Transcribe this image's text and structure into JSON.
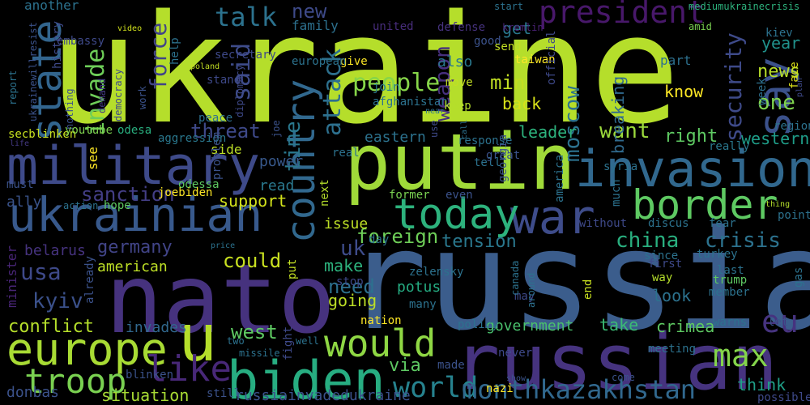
{
  "title": "",
  "words": [
    {
      "text": "ukraine",
      "color": "#b5de2b"
    },
    {
      "text": "russia",
      "color": "#3b5d8c"
    },
    {
      "text": "putin",
      "color": "#a0da39"
    },
    {
      "text": "nato",
      "color": "#46327e"
    },
    {
      "text": "russian",
      "color": "#46337f"
    },
    {
      "text": "military",
      "color": "#3e4a89"
    },
    {
      "text": "invasion",
      "color": "#31688e"
    },
    {
      "text": "ukrainian",
      "color": "#38598c"
    },
    {
      "text": "war",
      "color": "#3e4c8a"
    },
    {
      "text": "biden",
      "color": "#27ad81"
    },
    {
      "text": "border",
      "color": "#5ec962"
    },
    {
      "text": "europe",
      "color": "#a8db34"
    },
    {
      "text": "u",
      "color": "#b5de2b"
    },
    {
      "text": "today",
      "color": "#2db27d"
    },
    {
      "text": "would",
      "color": "#8fd744"
    },
    {
      "text": "country",
      "color": "#31688e"
    },
    {
      "text": "state",
      "color": "#32658e"
    },
    {
      "text": "say",
      "color": "#3b518b"
    },
    {
      "text": "troop",
      "color": "#7ad151"
    },
    {
      "text": "like",
      "color": "#482878"
    },
    {
      "text": "world",
      "color": "#26828e"
    },
    {
      "text": "monthkazakhstan",
      "color": "#31688e"
    },
    {
      "text": "max",
      "color": "#84d44b"
    },
    {
      "text": "eu",
      "color": "#46337f"
    },
    {
      "text": "president",
      "color": "#48186a"
    },
    {
      "text": "people",
      "color": "#86d549"
    },
    {
      "text": "talk",
      "color": "#2c728e"
    },
    {
      "text": "invade",
      "color": "#6ece58"
    },
    {
      "text": "said",
      "color": "#3e4c8a"
    },
    {
      "text": "force",
      "color": "#414487"
    },
    {
      "text": "time",
      "color": "#2a788e"
    },
    {
      "text": "attack",
      "color": "#2d708e"
    },
    {
      "text": "weapon",
      "color": "#472f7d"
    },
    {
      "text": "security",
      "color": "#3e4a89"
    },
    {
      "text": "threat",
      "color": "#3e4989"
    },
    {
      "text": "want",
      "color": "#9bd93c"
    },
    {
      "text": "sanction",
      "color": "#433e85"
    },
    {
      "text": "usa",
      "color": "#3e4989"
    },
    {
      "text": "germany",
      "color": "#414487"
    },
    {
      "text": "uk",
      "color": "#3e4c8a"
    },
    {
      "text": "foreign",
      "color": "#6ece58"
    },
    {
      "text": "tension",
      "color": "#2a788e"
    },
    {
      "text": "china",
      "color": "#29af7f"
    },
    {
      "text": "crisis",
      "color": "#2c728e"
    },
    {
      "text": "could",
      "color": "#c8e020"
    },
    {
      "text": "west",
      "color": "#5ec962"
    },
    {
      "text": "need",
      "color": "#2d708e"
    },
    {
      "text": "kyiv",
      "color": "#3b518b"
    },
    {
      "text": "conflict",
      "color": "#b5de2b"
    },
    {
      "text": "moscow",
      "color": "#2c718e"
    },
    {
      "text": "min",
      "color": "#c2df23"
    },
    {
      "text": "one",
      "color": "#7fd34e"
    },
    {
      "text": "new",
      "color": "#3e4a89"
    },
    {
      "text": "get",
      "color": "#2a788e"
    },
    {
      "text": "know",
      "color": "#fde725"
    },
    {
      "text": "right",
      "color": "#5ec962"
    },
    {
      "text": "support",
      "color": "#d2e21b"
    },
    {
      "text": "breaking",
      "color": "#306a8e"
    },
    {
      "text": "news",
      "color": "#b8de29"
    },
    {
      "text": "year",
      "color": "#20928c"
    },
    {
      "text": "also",
      "color": "#2a788e"
    },
    {
      "text": "back",
      "color": "#d8e219"
    },
    {
      "text": "leader",
      "color": "#2db27d"
    },
    {
      "text": "western",
      "color": "#1f9e89"
    },
    {
      "text": "eastern",
      "color": "#2c728e"
    },
    {
      "text": "american",
      "color": "#bddf26"
    },
    {
      "text": "via",
      "color": "#5ec962"
    },
    {
      "text": "make",
      "color": "#2db27d"
    },
    {
      "text": "going",
      "color": "#bddf26"
    },
    {
      "text": "potus",
      "color": "#25ac82"
    },
    {
      "text": "government",
      "color": "#4ac16d"
    },
    {
      "text": "take",
      "color": "#3bbb75"
    },
    {
      "text": "crimea",
      "color": "#5ec962"
    },
    {
      "text": "look",
      "color": "#2c728e"
    },
    {
      "text": "think",
      "color": "#1f9f88"
    },
    {
      "text": "issue",
      "color": "#bddf26"
    },
    {
      "text": "situation",
      "color": "#a8db34"
    },
    {
      "text": "invades",
      "color": "#31688e"
    },
    {
      "text": "donbas",
      "color": "#3b528b"
    },
    {
      "text": "ally",
      "color": "#3a548c"
    },
    {
      "text": "read",
      "color": "#2a788e"
    },
    {
      "text": "power",
      "color": "#38598c"
    },
    {
      "text": "side",
      "color": "#bddf26"
    },
    {
      "text": "minister",
      "color": "#482576"
    },
    {
      "text": "belarus",
      "color": "#46337f"
    },
    {
      "text": "russiainvadedukraine",
      "color": "#3b528b"
    },
    {
      "text": "another",
      "color": "#2c728e"
    },
    {
      "text": "video",
      "color": "#d0e11c"
    },
    {
      "text": "report",
      "color": "#2c728e"
    },
    {
      "text": "ukrainewillresist",
      "color": "#3b528b"
    },
    {
      "text": "nothing",
      "color": "#3b528b"
    },
    {
      "text": "demand",
      "color": "#443a83"
    },
    {
      "text": "secblinken",
      "color": "#c8e020"
    },
    {
      "text": "odesa",
      "color": "#29af7f"
    },
    {
      "text": "aggression",
      "color": "#2a788e"
    },
    {
      "text": "peace",
      "color": "#2d708e"
    },
    {
      "text": "life",
      "color": "#443983"
    },
    {
      "text": "youtube",
      "color": "#7fd34e"
    },
    {
      "text": "see",
      "color": "#fde725"
    },
    {
      "text": "must",
      "color": "#3b528b"
    },
    {
      "text": "action",
      "color": "#2c728e"
    },
    {
      "text": "hope",
      "color": "#5ec962"
    },
    {
      "text": "odessa",
      "color": "#5ec962"
    },
    {
      "text": "joebiden",
      "color": "#fde725"
    },
    {
      "text": "already",
      "color": "#3b528b"
    },
    {
      "text": "family",
      "color": "#2d708e"
    },
    {
      "text": "united",
      "color": "#472d7b"
    },
    {
      "text": "defense",
      "color": "#46327e"
    },
    {
      "text": "kremlin",
      "color": "#482173"
    },
    {
      "text": "mediumukrainecrisis",
      "color": "#2db27d"
    },
    {
      "text": "amid",
      "color": "#7ad151"
    },
    {
      "text": "kiev",
      "color": "#2c728e"
    },
    {
      "text": "start",
      "color": "#2c728e"
    },
    {
      "text": "good",
      "color": "#3b528b"
    },
    {
      "text": "give",
      "color": "#fde725"
    },
    {
      "text": "european",
      "color": "#2c728e"
    },
    {
      "text": "send",
      "color": "#c2df23"
    },
    {
      "text": "taiwan",
      "color": "#fde725"
    },
    {
      "text": "part",
      "color": "#2d708e"
    },
    {
      "text": "face",
      "color": "#dde318"
    },
    {
      "text": "move",
      "color": "#c2df23"
    },
    {
      "text": "official",
      "color": "#3e4989"
    },
    {
      "text": "week",
      "color": "#2d708e"
    },
    {
      "text": "join",
      "color": "#2a788e"
    },
    {
      "text": "afghanistan",
      "color": "#2c728e"
    },
    {
      "text": "keep",
      "color": "#b5de2b"
    },
    {
      "text": "use",
      "color": "#3e4989"
    },
    {
      "text": "call",
      "color": "#2d708e"
    },
    {
      "text": "response",
      "color": "#2c728e"
    },
    {
      "text": "georgia",
      "color": "#3b528b"
    },
    {
      "text": "really",
      "color": "#2a788e"
    },
    {
      "text": "region",
      "color": "#2c728e"
    },
    {
      "text": "tell",
      "color": "#2c728e"
    },
    {
      "text": "real",
      "color": "#2c728e"
    },
    {
      "text": "next",
      "color": "#b5de2b"
    },
    {
      "text": "former",
      "color": "#7ad151"
    },
    {
      "text": "even",
      "color": "#3b528b"
    },
    {
      "text": "america",
      "color": "#2c728e"
    },
    {
      "text": "without",
      "color": "#3e4989"
    },
    {
      "text": "discus",
      "color": "#2c728e"
    },
    {
      "text": "fear",
      "color": "#2c728e"
    },
    {
      "text": "point",
      "color": "#2c728e"
    },
    {
      "text": "thing",
      "color": "#b5de2b"
    },
    {
      "text": "since",
      "color": "#2c728e"
    },
    {
      "text": "turkey",
      "color": "#2c728e"
    },
    {
      "text": "last",
      "color": "#2c728e"
    },
    {
      "text": "trump",
      "color": "#5ec962"
    },
    {
      "text": "member",
      "color": "#2c728e"
    },
    {
      "text": "first",
      "color": "#3e4989"
    },
    {
      "text": "way",
      "color": "#b5de2b"
    },
    {
      "text": "end",
      "color": "#c8e020"
    },
    {
      "text": "may",
      "color": "#3e4989"
    },
    {
      "text": "canada",
      "color": "#2c728e"
    },
    {
      "text": "around",
      "color": "#2d708e"
    },
    {
      "text": "zelensky",
      "color": "#2c728e"
    },
    {
      "text": "many",
      "color": "#2c728e"
    },
    {
      "text": "nation",
      "color": "#fde725"
    },
    {
      "text": "policy",
      "color": "#2c728e"
    },
    {
      "text": "well",
      "color": "#2c728e"
    },
    {
      "text": "never",
      "color": "#3e4989"
    },
    {
      "text": "made",
      "color": "#3b528b"
    },
    {
      "text": "nazi",
      "color": "#fde725"
    },
    {
      "text": "show",
      "color": "#3b528b"
    },
    {
      "text": "come",
      "color": "#3b528b"
    },
    {
      "text": "possible",
      "color": "#3e4989"
    },
    {
      "text": "warns",
      "color": "#2c728e"
    },
    {
      "text": "let",
      "color": "#3b528b"
    },
    {
      "text": "meeting",
      "color": "#2c728e"
    },
    {
      "text": "missile",
      "color": "#2c728e"
    },
    {
      "text": "two",
      "color": "#2c728e"
    },
    {
      "text": "fight",
      "color": "#3e4989"
    },
    {
      "text": "blinken",
      "color": "#3b528b"
    },
    {
      "text": "still",
      "color": "#3b528b"
    },
    {
      "text": "day",
      "color": "#2c728e"
    },
    {
      "text": "stop",
      "color": "#3e4989"
    },
    {
      "text": "put",
      "color": "#c2df23"
    },
    {
      "text": "price",
      "color": "#2c728e"
    },
    {
      "text": "problem",
      "color": "#3b528b"
    },
    {
      "text": "diplomacy",
      "color": "#3e4989"
    },
    {
      "text": "joe",
      "color": "#3b528b"
    },
    {
      "text": "stand",
      "color": "#3e4989"
    },
    {
      "text": "secretary",
      "color": "#3e4989"
    },
    {
      "text": "help",
      "color": "#2c728e"
    },
    {
      "text": "poland",
      "color": "#c2df23"
    },
    {
      "text": "democracy",
      "color": "#3e4989"
    },
    {
      "text": "work",
      "color": "#3b528b"
    },
    {
      "text": "history",
      "color": "#3e4989"
    },
    {
      "text": "embassy",
      "color": "#3e4989"
    },
    {
      "text": "near",
      "color": "#2c728e"
    },
    {
      "text": "syria",
      "color": "#2c728e"
    },
    {
      "text": "much",
      "color": "#2c728e"
    },
    {
      "text": "gas",
      "color": "#2c728e"
    },
    {
      "text": "plan",
      "color": "#3e4989"
    },
    {
      "text": "great",
      "color": "#3b528b"
    },
    {
      "text": "un",
      "color": "#c2df23"
    }
  ]
}
